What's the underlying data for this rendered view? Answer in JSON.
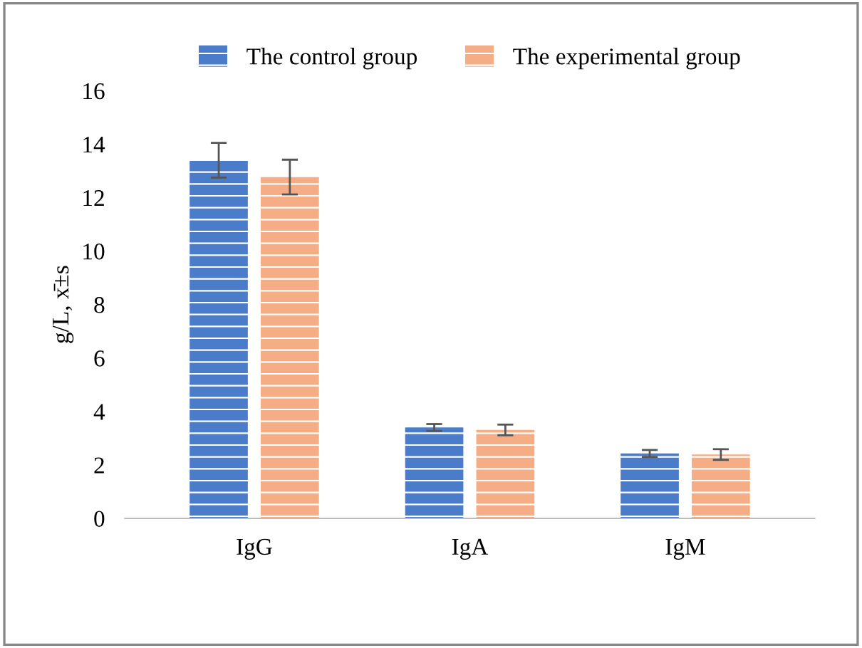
{
  "chart_data": {
    "type": "bar",
    "ylabel": "g/L, x̄±s",
    "categories": [
      "IgG",
      "IgA",
      "IgM"
    ],
    "series": [
      {
        "name": "The control group",
        "color": "#4a7cc9",
        "values": [
          13.4,
          3.4,
          2.43
        ],
        "errors": [
          0.65,
          0.13,
          0.13
        ]
      },
      {
        "name": "The experimental group",
        "color": "#f4ad84",
        "values": [
          12.77,
          3.31,
          2.39
        ],
        "errors": [
          0.65,
          0.2,
          0.2
        ]
      }
    ],
    "ylim": [
      0,
      16
    ],
    "yticks": [
      0,
      2,
      4,
      6,
      8,
      10,
      12,
      14,
      16
    ],
    "grid": false,
    "legend": "top"
  }
}
